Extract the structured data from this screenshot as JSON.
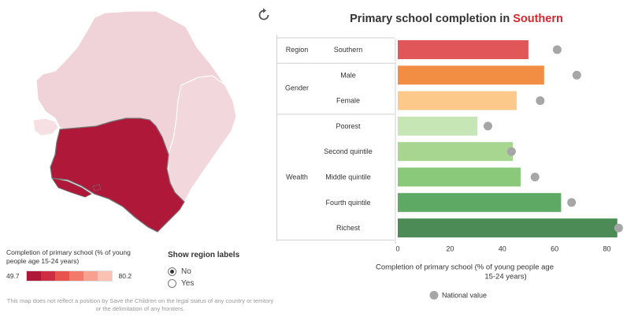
{
  "colors": {
    "title_accent": "#d9262d",
    "map_highlight": "#b0183a",
    "map_light": "#f0d3d8",
    "national_marker": "#a6a6a6"
  },
  "map": {
    "reset_icon": "reset-icon",
    "legend": {
      "title": "Completion of primary school (% of young people age 15-24 years)",
      "min": "49.7",
      "max": "80.2",
      "colors": [
        "#b0183a",
        "#cf2d43",
        "#e8534f",
        "#f37a6b",
        "#f8a190",
        "#fbc2b4"
      ]
    },
    "region_labels": {
      "title": "Show region labels",
      "options": [
        {
          "label": "No",
          "selected": true
        },
        {
          "label": "Yes",
          "selected": false
        }
      ]
    },
    "disclaimer": "This map does not reflect a position by Save the Children on the legal status of any country or territory or the delimitation of any frontiers."
  },
  "chart": {
    "title_prefix": "Primary school completion in ",
    "title_region": "Southern"
  },
  "chart_data": {
    "type": "bar",
    "orientation": "horizontal",
    "xlabel": "Completion of primary school (% of young people age 15-24 years)",
    "xlim": [
      0,
      88
    ],
    "xticks": [
      0,
      20,
      40,
      60,
      80
    ],
    "legend": {
      "marker": "National value",
      "placement": "bottom"
    },
    "groups": [
      {
        "name": "Region",
        "rows": [
          {
            "label": "Southern",
            "value": 50,
            "national": 61,
            "color": "#e15759"
          }
        ]
      },
      {
        "name": "Gender",
        "rows": [
          {
            "label": "Male",
            "value": 56,
            "national": 68.5,
            "color": "#f28e44"
          },
          {
            "label": "Female",
            "value": 45.5,
            "national": 54.5,
            "color": "#fdc98b"
          }
        ]
      },
      {
        "name": "Wealth",
        "rows": [
          {
            "label": "Poorest",
            "value": 30.5,
            "national": 34.5,
            "color": "#c6e6b6"
          },
          {
            "label": "Second quintile",
            "value": 44,
            "national": 43.5,
            "color": "#a6d690"
          },
          {
            "label": "Middle quintile",
            "value": 47,
            "national": 52.5,
            "color": "#8ac97a"
          },
          {
            "label": "Fourth quintile",
            "value": 62.5,
            "national": 66.5,
            "color": "#5ea963"
          },
          {
            "label": "Richest",
            "value": 84,
            "national": 84.5,
            "color": "#4c8a56"
          }
        ]
      }
    ]
  }
}
